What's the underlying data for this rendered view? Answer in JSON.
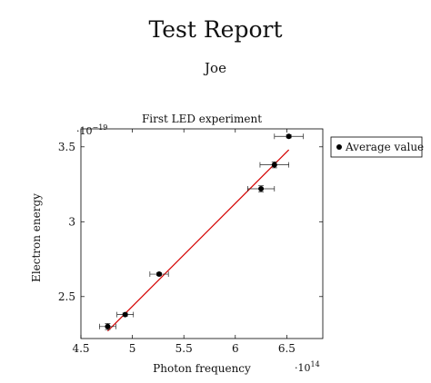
{
  "document": {
    "title": "Test Report",
    "author": "Joe"
  },
  "chart_data": {
    "type": "scatter",
    "title": "First LED experiment",
    "xlabel": "Photon frequency",
    "ylabel": "Electron energy",
    "x_exponent_label": "·10",
    "x_exponent": "14",
    "y_exponent_label": "·10",
    "y_exponent": "−19",
    "xlim": [
      4.5,
      6.85
    ],
    "ylim": [
      2.22,
      3.62
    ],
    "xticks": [
      4.5,
      5,
      5.5,
      6,
      6.5
    ],
    "xtick_labels": [
      "4.5",
      "5",
      "5.5",
      "6",
      "6.5"
    ],
    "yticks": [
      2.5,
      3,
      3.5
    ],
    "ytick_labels": [
      "2.5",
      "3",
      "3.5"
    ],
    "grid": false,
    "legend": "outside-right-top",
    "series": [
      {
        "name": "Average value",
        "marker_color": "#000000",
        "points": [
          {
            "x": 4.76,
            "y": 2.3,
            "xerr": 0.08,
            "yerr": 0.02
          },
          {
            "x": 4.93,
            "y": 2.38,
            "xerr": 0.08,
            "yerr": 0.01
          },
          {
            "x": 5.26,
            "y": 2.65,
            "xerr": 0.09,
            "yerr": 0.01
          },
          {
            "x": 6.25,
            "y": 3.22,
            "xerr": 0.13,
            "yerr": 0.02
          },
          {
            "x": 6.38,
            "y": 3.38,
            "xerr": 0.14,
            "yerr": 0.02
          },
          {
            "x": 6.52,
            "y": 3.57,
            "xerr": 0.14,
            "yerr": 0.01
          }
        ]
      }
    ],
    "fit_line": {
      "color": "#d40000",
      "x": [
        4.76,
        6.52
      ],
      "y": [
        2.27,
        3.48
      ]
    }
  }
}
